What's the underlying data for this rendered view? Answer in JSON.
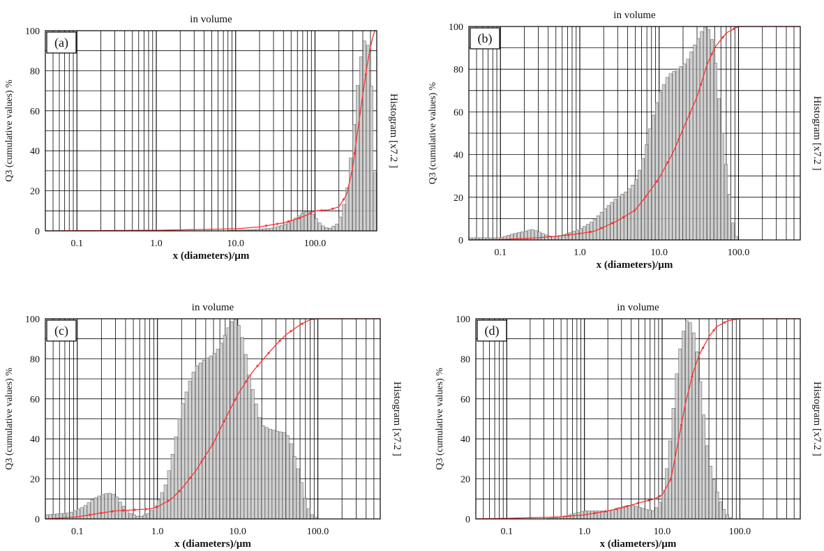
{
  "chart_data": [
    {
      "type": "bar",
      "panel_label": "(a)",
      "title": "in volume",
      "xlabel": "x (diameters)/µm",
      "ylabel": "Q3 (cumulative values) %",
      "y2label": "Histogram [x7.2 ]",
      "xscale": "log",
      "xlim": [
        0.04,
        600
      ],
      "ylim": [
        0,
        100
      ],
      "xticks": [
        0.1,
        1,
        10,
        100
      ],
      "xtick_labels": [
        "0.1",
        "1.0",
        "10.0",
        "100.0"
      ],
      "yticks": [
        0,
        20,
        40,
        60,
        80,
        100
      ],
      "grid": true,
      "colors": {
        "bars": "#c8c8c8",
        "bar_edge": "#555555",
        "line": "#ff3030"
      },
      "histogram": [
        [
          0.04,
          0
        ],
        [
          5,
          0
        ],
        [
          10,
          0.3
        ],
        [
          15,
          0.6
        ],
        [
          20,
          0.8
        ],
        [
          30,
          1.5
        ],
        [
          40,
          3
        ],
        [
          50,
          5
        ],
        [
          60,
          7
        ],
        [
          70,
          9
        ],
        [
          80,
          10
        ],
        [
          90,
          9
        ],
        [
          100,
          7
        ],
        [
          120,
          3
        ],
        [
          150,
          1
        ],
        [
          200,
          4
        ],
        [
          250,
          18
        ],
        [
          300,
          45
        ],
        [
          350,
          75
        ],
        [
          400,
          93
        ],
        [
          450,
          97
        ],
        [
          500,
          85
        ],
        [
          560,
          40
        ],
        [
          600,
          0
        ]
      ],
      "cumulative": [
        [
          0.04,
          0
        ],
        [
          0.1,
          0.1
        ],
        [
          1,
          0.3
        ],
        [
          5,
          0.8
        ],
        [
          10,
          1
        ],
        [
          20,
          2
        ],
        [
          40,
          4
        ],
        [
          60,
          6
        ],
        [
          80,
          8
        ],
        [
          100,
          10
        ],
        [
          150,
          10.5
        ],
        [
          200,
          12
        ],
        [
          250,
          18
        ],
        [
          300,
          32
        ],
        [
          350,
          52
        ],
        [
          400,
          68
        ],
        [
          450,
          82
        ],
        [
          500,
          92
        ],
        [
          560,
          100
        ]
      ]
    },
    {
      "type": "bar",
      "panel_label": "(b)",
      "title": "in volume",
      "xlabel": "x (diameters)/µm",
      "ylabel": "Q3 (cumulative values) %",
      "y2label": "Histogram [x7.2 ]",
      "xscale": "log",
      "xlim": [
        0.04,
        600
      ],
      "ylim": [
        0,
        100
      ],
      "xticks": [
        0.1,
        1,
        10,
        100
      ],
      "xtick_labels": [
        "0.1",
        "1.0",
        "10.0",
        "100.0"
      ],
      "yticks": [
        0,
        20,
        40,
        60,
        80,
        100
      ],
      "grid": true,
      "colors": {
        "bars": "#c8c8c8",
        "bar_edge": "#555555",
        "line": "#ff3030"
      },
      "histogram": [
        [
          0.04,
          1
        ],
        [
          0.1,
          1
        ],
        [
          0.15,
          3
        ],
        [
          0.2,
          4
        ],
        [
          0.25,
          5
        ],
        [
          0.3,
          4
        ],
        [
          0.4,
          2
        ],
        [
          0.5,
          1.5
        ],
        [
          0.7,
          3
        ],
        [
          1,
          5
        ],
        [
          1.5,
          9
        ],
        [
          2,
          14
        ],
        [
          3,
          20
        ],
        [
          4,
          23
        ],
        [
          5,
          27
        ],
        [
          6,
          35
        ],
        [
          7,
          45
        ],
        [
          8,
          55
        ],
        [
          10,
          68
        ],
        [
          13,
          77
        ],
        [
          17,
          80
        ],
        [
          22,
          83
        ],
        [
          27,
          90
        ],
        [
          32,
          95
        ],
        [
          36,
          99
        ],
        [
          40,
          100
        ],
        [
          45,
          97
        ],
        [
          50,
          88
        ],
        [
          55,
          72
        ],
        [
          65,
          45
        ],
        [
          75,
          25
        ],
        [
          85,
          8
        ],
        [
          95,
          1
        ],
        [
          100,
          0
        ],
        [
          600,
          0
        ]
      ],
      "cumulative": [
        [
          0.04,
          0
        ],
        [
          0.1,
          0.2
        ],
        [
          0.3,
          1
        ],
        [
          0.6,
          2
        ],
        [
          1,
          3
        ],
        [
          1.5,
          4
        ],
        [
          2,
          6
        ],
        [
          3,
          9
        ],
        [
          5,
          14
        ],
        [
          7,
          21
        ],
        [
          10,
          29
        ],
        [
          15,
          41
        ],
        [
          20,
          52
        ],
        [
          30,
          67
        ],
        [
          40,
          82
        ],
        [
          50,
          90
        ],
        [
          70,
          97
        ],
        [
          100,
          100
        ],
        [
          600,
          100
        ]
      ]
    },
    {
      "type": "bar",
      "panel_label": "(c)",
      "title": "in volume",
      "xlabel": "x (diameters)/µm",
      "ylabel": "Q3 (cumulative values) %",
      "y2label": "Histogram [x7.2 ]",
      "xscale": "log",
      "xlim": [
        0.04,
        600
      ],
      "ylim": [
        0,
        100
      ],
      "xticks": [
        0.1,
        1,
        10,
        100
      ],
      "xtick_labels": [
        "0.1",
        "1.0",
        "10.0",
        "100.0"
      ],
      "yticks": [
        0,
        20,
        40,
        60,
        80,
        100
      ],
      "grid": true,
      "colors": {
        "bars": "#c8c8c8",
        "bar_edge": "#555555",
        "line": "#ff3030"
      },
      "histogram": [
        [
          0.04,
          2
        ],
        [
          0.08,
          3
        ],
        [
          0.12,
          6
        ],
        [
          0.16,
          10
        ],
        [
          0.2,
          12
        ],
        [
          0.25,
          13
        ],
        [
          0.3,
          12
        ],
        [
          0.35,
          8
        ],
        [
          0.45,
          3
        ],
        [
          0.6,
          1
        ],
        [
          0.8,
          3
        ],
        [
          1,
          8
        ],
        [
          1.3,
          18
        ],
        [
          1.6,
          35
        ],
        [
          2,
          55
        ],
        [
          2.5,
          68
        ],
        [
          3,
          76
        ],
        [
          4,
          80
        ],
        [
          5,
          82
        ],
        [
          6,
          86
        ],
        [
          7,
          92
        ],
        [
          8,
          97
        ],
        [
          9,
          100
        ],
        [
          10,
          99
        ],
        [
          12,
          88
        ],
        [
          14,
          72
        ],
        [
          17,
          58
        ],
        [
          20,
          47
        ],
        [
          25,
          45
        ],
        [
          30,
          44
        ],
        [
          40,
          43
        ],
        [
          45,
          40
        ],
        [
          50,
          33
        ],
        [
          60,
          22
        ],
        [
          70,
          10
        ],
        [
          80,
          3
        ],
        [
          100,
          0
        ],
        [
          600,
          0
        ]
      ],
      "cumulative": [
        [
          0.04,
          0
        ],
        [
          0.1,
          1
        ],
        [
          0.2,
          3
        ],
        [
          0.3,
          4
        ],
        [
          0.5,
          4.5
        ],
        [
          0.8,
          5
        ],
        [
          1,
          6
        ],
        [
          1.5,
          10
        ],
        [
          2,
          15
        ],
        [
          3,
          24
        ],
        [
          5,
          38
        ],
        [
          7,
          50
        ],
        [
          10,
          62
        ],
        [
          15,
          73
        ],
        [
          20,
          79
        ],
        [
          30,
          87
        ],
        [
          40,
          92
        ],
        [
          60,
          97
        ],
        [
          80,
          99.5
        ],
        [
          100,
          100
        ],
        [
          600,
          100
        ]
      ]
    },
    {
      "type": "bar",
      "panel_label": "(d)",
      "title": "in volume",
      "xlabel": "x (diameters)/µm",
      "ylabel": "Q3 (cumulative values) %",
      "y2label": "Histogram [x7.2 ]",
      "xscale": "log",
      "xlim": [
        0.04,
        600
      ],
      "ylim": [
        0,
        100
      ],
      "xticks": [
        0.1,
        1,
        10,
        100
      ],
      "xtick_labels": [
        "0.1",
        "1.0",
        "10.0",
        "100.0"
      ],
      "yticks": [
        0,
        20,
        40,
        60,
        80,
        100
      ],
      "grid": true,
      "colors": {
        "bars": "#c8c8c8",
        "bar_edge": "#555555",
        "line": "#ff3030"
      },
      "histogram": [
        [
          0.04,
          0
        ],
        [
          0.3,
          0
        ],
        [
          0.5,
          1
        ],
        [
          0.8,
          3
        ],
        [
          1,
          4
        ],
        [
          1.5,
          4
        ],
        [
          2,
          4
        ],
        [
          2.5,
          5
        ],
        [
          3,
          6
        ],
        [
          4,
          7
        ],
        [
          5,
          6
        ],
        [
          6,
          5
        ],
        [
          8,
          4
        ],
        [
          10,
          10
        ],
        [
          12,
          30
        ],
        [
          14,
          55
        ],
        [
          16,
          78
        ],
        [
          18,
          90
        ],
        [
          20,
          98
        ],
        [
          22,
          100
        ],
        [
          25,
          95
        ],
        [
          28,
          85
        ],
        [
          32,
          65
        ],
        [
          36,
          45
        ],
        [
          40,
          30
        ],
        [
          50,
          15
        ],
        [
          60,
          6
        ],
        [
          70,
          2
        ],
        [
          80,
          0
        ],
        [
          600,
          0
        ]
      ],
      "cumulative": [
        [
          0.04,
          0
        ],
        [
          0.1,
          0.3
        ],
        [
          0.5,
          1
        ],
        [
          1,
          2
        ],
        [
          2,
          4
        ],
        [
          3,
          5.5
        ],
        [
          5,
          8
        ],
        [
          8,
          10
        ],
        [
          10,
          12
        ],
        [
          13,
          20
        ],
        [
          16,
          38
        ],
        [
          20,
          58
        ],
        [
          25,
          73
        ],
        [
          30,
          82
        ],
        [
          40,
          91
        ],
        [
          50,
          96
        ],
        [
          70,
          99
        ],
        [
          100,
          100
        ],
        [
          600,
          100
        ]
      ]
    }
  ]
}
